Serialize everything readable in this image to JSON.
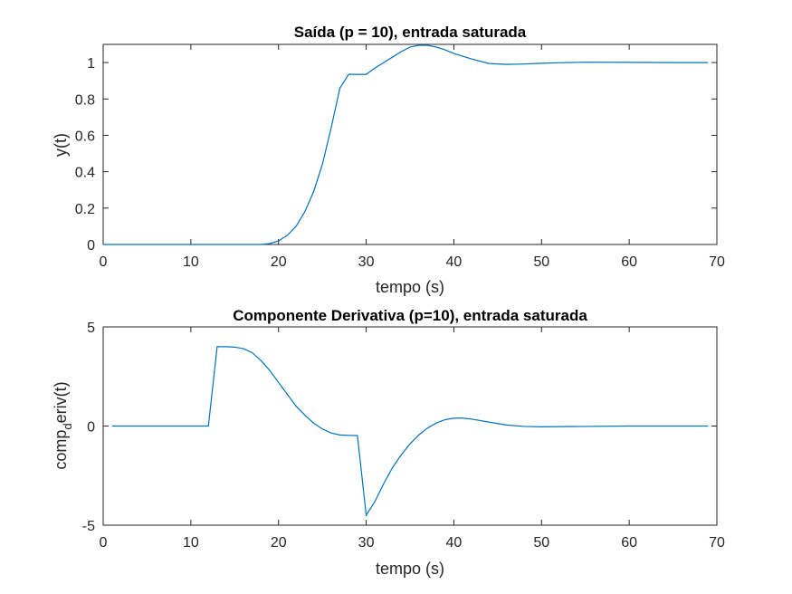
{
  "chart_data": [
    {
      "type": "line",
      "title": "Saída (p = 10), entrada saturada",
      "xlabel": "tempo (s)",
      "ylabel": "y(t)",
      "xlim": [
        0,
        70
      ],
      "ylim": [
        0,
        1.1
      ],
      "xticks": [
        0,
        10,
        20,
        30,
        40,
        50,
        60,
        70
      ],
      "xtick_labels": [
        "0",
        "10",
        "20",
        "30",
        "40",
        "50",
        "60",
        "70"
      ],
      "yticks": [
        0,
        0.2,
        0.4,
        0.6,
        0.8,
        1
      ],
      "ytick_labels": [
        "0",
        "0.2",
        "0.4",
        "0.6",
        "0.8",
        "1"
      ],
      "color": "#0072bd",
      "series": [
        {
          "name": "y(t)",
          "x": [
            0,
            5,
            10,
            15,
            18,
            19,
            20,
            21,
            22,
            23,
            24,
            25,
            26,
            27,
            28,
            29,
            30,
            31,
            32,
            33,
            34,
            35,
            36,
            37,
            38,
            39,
            40,
            42,
            44,
            46,
            48,
            50,
            52,
            55,
            60,
            65,
            69
          ],
          "y": [
            0,
            0,
            0,
            0,
            0,
            0.005,
            0.02,
            0.05,
            0.1,
            0.18,
            0.29,
            0.44,
            0.64,
            0.86,
            0.935,
            0.935,
            0.935,
            0.97,
            1.0,
            1.03,
            1.06,
            1.085,
            1.095,
            1.095,
            1.085,
            1.07,
            1.05,
            1.02,
            0.995,
            0.99,
            0.992,
            0.996,
            0.999,
            1.002,
            1.001,
            1.0,
            1.0
          ]
        }
      ]
    },
    {
      "type": "line",
      "title": "Componente Derivativa (p=10), entrada saturada",
      "xlabel": "tempo (s)",
      "ylabel": "comp_deriv(t)",
      "ylabel_parts": [
        "comp",
        "d",
        "eriv(t)"
      ],
      "xlim": [
        0,
        70
      ],
      "ylim": [
        -5,
        5
      ],
      "xticks": [
        0,
        10,
        20,
        30,
        40,
        50,
        60,
        70
      ],
      "xtick_labels": [
        "0",
        "10",
        "20",
        "30",
        "40",
        "50",
        "60",
        "70"
      ],
      "yticks": [
        -5,
        0,
        5
      ],
      "ytick_labels": [
        "-5",
        "0",
        "5"
      ],
      "color": "#0072bd",
      "series": [
        {
          "name": "comp_deriv(t)",
          "x": [
            1,
            5,
            10,
            12,
            13,
            14,
            15,
            16,
            17,
            18,
            19,
            20,
            21,
            22,
            23,
            24,
            25,
            26,
            27,
            28,
            29,
            30,
            31,
            32,
            33,
            34,
            35,
            36,
            37,
            38,
            39,
            40,
            41,
            42,
            44,
            46,
            48,
            50,
            55,
            60,
            65,
            69
          ],
          "y": [
            0,
            0,
            0,
            0,
            4.0,
            4.0,
            3.98,
            3.9,
            3.7,
            3.3,
            2.8,
            2.2,
            1.6,
            1.0,
            0.55,
            0.15,
            -0.15,
            -0.35,
            -0.45,
            -0.47,
            -0.48,
            -4.5,
            -3.8,
            -2.9,
            -2.1,
            -1.45,
            -0.9,
            -0.45,
            -0.1,
            0.15,
            0.32,
            0.4,
            0.4,
            0.35,
            0.2,
            0.05,
            -0.02,
            -0.04,
            -0.02,
            0.0,
            0.0,
            0.0
          ]
        }
      ]
    }
  ]
}
